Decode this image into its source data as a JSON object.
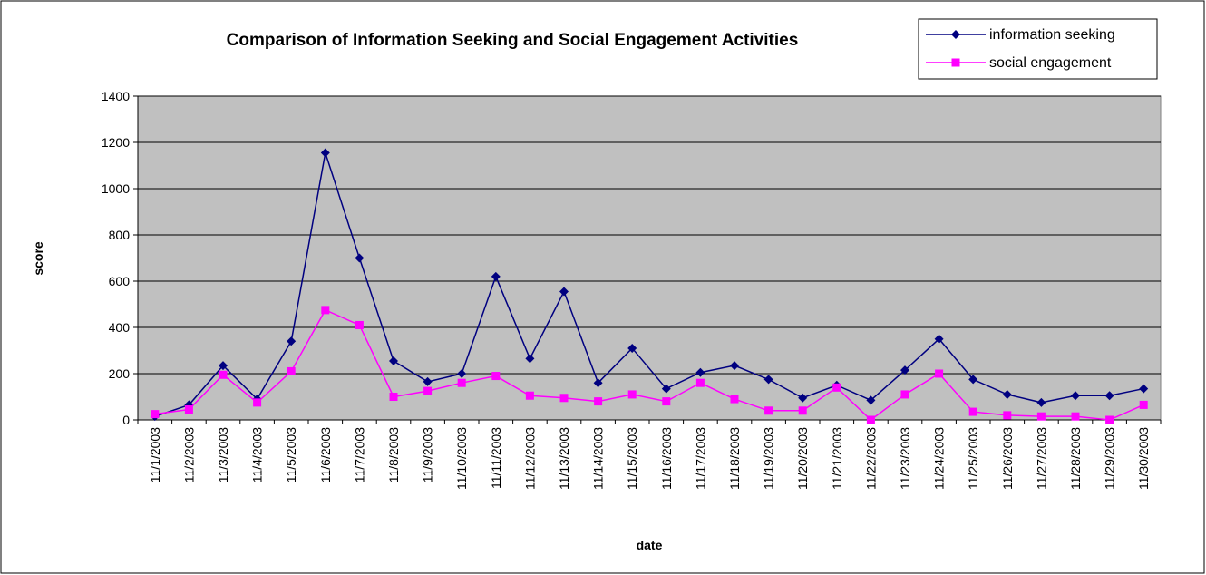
{
  "chart_data": {
    "type": "line",
    "title": "Comparison of Information Seeking and Social Engagement Activities",
    "x_label": "date",
    "y_label": "score",
    "categories": [
      "11/1/2003",
      "11/2/2003",
      "11/3/2003",
      "11/4/2003",
      "11/5/2003",
      "11/6/2003",
      "11/7/2003",
      "11/8/2003",
      "11/9/2003",
      "11/10/2003",
      "11/11/2003",
      "11/12/2003",
      "11/13/2003",
      "11/14/2003",
      "11/15/2003",
      "11/16/2003",
      "11/17/2003",
      "11/18/2003",
      "11/19/2003",
      "11/20/2003",
      "11/21/2003",
      "11/22/2003",
      "11/23/2003",
      "11/24/2003",
      "11/25/2003",
      "11/26/2003",
      "11/27/2003",
      "11/28/2003",
      "11/29/2003",
      "11/30/2003"
    ],
    "series": [
      {
        "name": "information seeking",
        "color": "#000080",
        "marker": "diamond",
        "values": [
          15,
          65,
          235,
          90,
          340,
          1155,
          700,
          255,
          165,
          200,
          620,
          265,
          555,
          160,
          310,
          135,
          205,
          235,
          175,
          95,
          150,
          85,
          215,
          350,
          175,
          110,
          75,
          105,
          105,
          135
        ]
      },
      {
        "name": "social engagement",
        "color": "#ff00ff",
        "marker": "square",
        "values": [
          25,
          45,
          195,
          75,
          210,
          475,
          410,
          100,
          125,
          160,
          190,
          105,
          95,
          80,
          110,
          80,
          160,
          90,
          40,
          40,
          140,
          0,
          110,
          200,
          35,
          20,
          15,
          15,
          0,
          65
        ]
      }
    ],
    "ylim": [
      0,
      1400
    ],
    "yticks": [
      0,
      200,
      400,
      600,
      800,
      1000,
      1200,
      1400
    ],
    "grid": true,
    "legend": "top-right",
    "plot_background": "#c0c0c0"
  }
}
